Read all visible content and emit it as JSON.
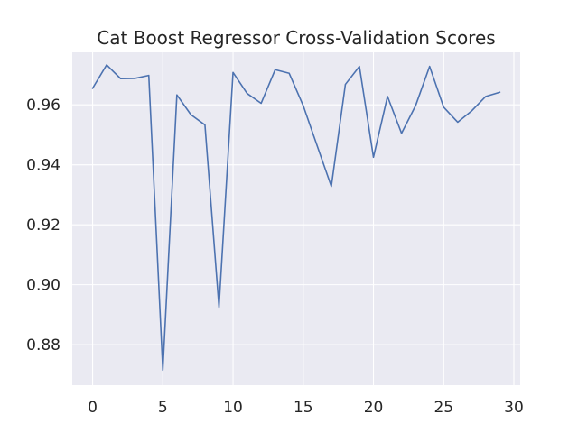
{
  "chart_data": {
    "type": "line",
    "title": "Cat Boost Regressor Cross-Validation Scores",
    "xlabel": "",
    "ylabel": "",
    "xlim": [
      -1.45,
      30.45
    ],
    "ylim": [
      0.8665,
      0.9775
    ],
    "xticks": [
      0,
      5,
      10,
      15,
      20,
      25,
      30
    ],
    "xtick_labels": [
      "0",
      "5",
      "10",
      "15",
      "20",
      "25",
      "30"
    ],
    "yticks": [
      0.88,
      0.9,
      0.92,
      0.94,
      0.96
    ],
    "ytick_labels": [
      "0.88",
      "0.90",
      "0.92",
      "0.94",
      "0.96"
    ],
    "grid": true,
    "background": "#eaeaf2",
    "line_color": "#4c72b0",
    "series": [
      {
        "x": [
          0,
          1,
          2,
          3,
          4,
          5,
          6,
          7,
          8,
          9,
          10,
          11,
          12,
          13,
          14,
          15,
          16,
          17,
          18,
          19,
          20,
          21,
          22,
          23,
          24,
          25,
          26,
          27,
          28,
          29
        ],
        "values": [
          0.9655,
          0.9733,
          0.9687,
          0.9688,
          0.9698,
          0.8715,
          0.9633,
          0.9567,
          0.9533,
          0.8925,
          0.9708,
          0.9638,
          0.9605,
          0.9717,
          0.9705,
          0.9597,
          0.9462,
          0.9328,
          0.9668,
          0.9728,
          0.9425,
          0.9628,
          0.9505,
          0.9597,
          0.9728,
          0.9592,
          0.9542,
          0.958,
          0.9628,
          0.9642
        ]
      }
    ]
  }
}
